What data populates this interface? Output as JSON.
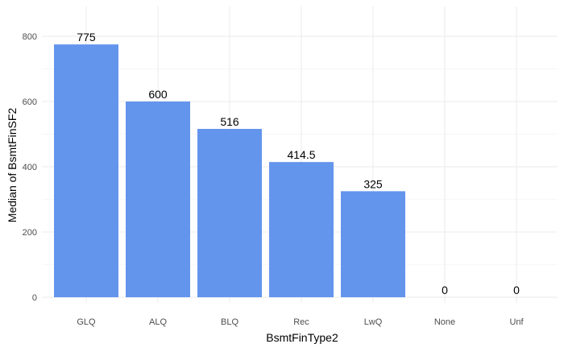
{
  "chart_data": {
    "type": "bar",
    "title": "",
    "xlabel": "BsmtFinType2",
    "ylabel": "Median of BsmtFinSF2",
    "categories": [
      "GLQ",
      "ALQ",
      "BLQ",
      "Rec",
      "LwQ",
      "None",
      "Unf"
    ],
    "values": [
      775,
      600,
      516,
      414.5,
      325,
      0,
      0
    ],
    "data_labels": [
      "775",
      "600",
      "516",
      "414.5",
      "325",
      "0",
      "0"
    ],
    "y_ticks": [
      0,
      200,
      400,
      600,
      800
    ],
    "ylim": [
      0,
      850
    ],
    "grid": true,
    "legend": "none",
    "colors": {
      "bar": "#6495ED",
      "grid_major": "#EBEBEB",
      "grid_minor": "#F5F5F5",
      "tick_text": "#4D4D4D"
    }
  }
}
